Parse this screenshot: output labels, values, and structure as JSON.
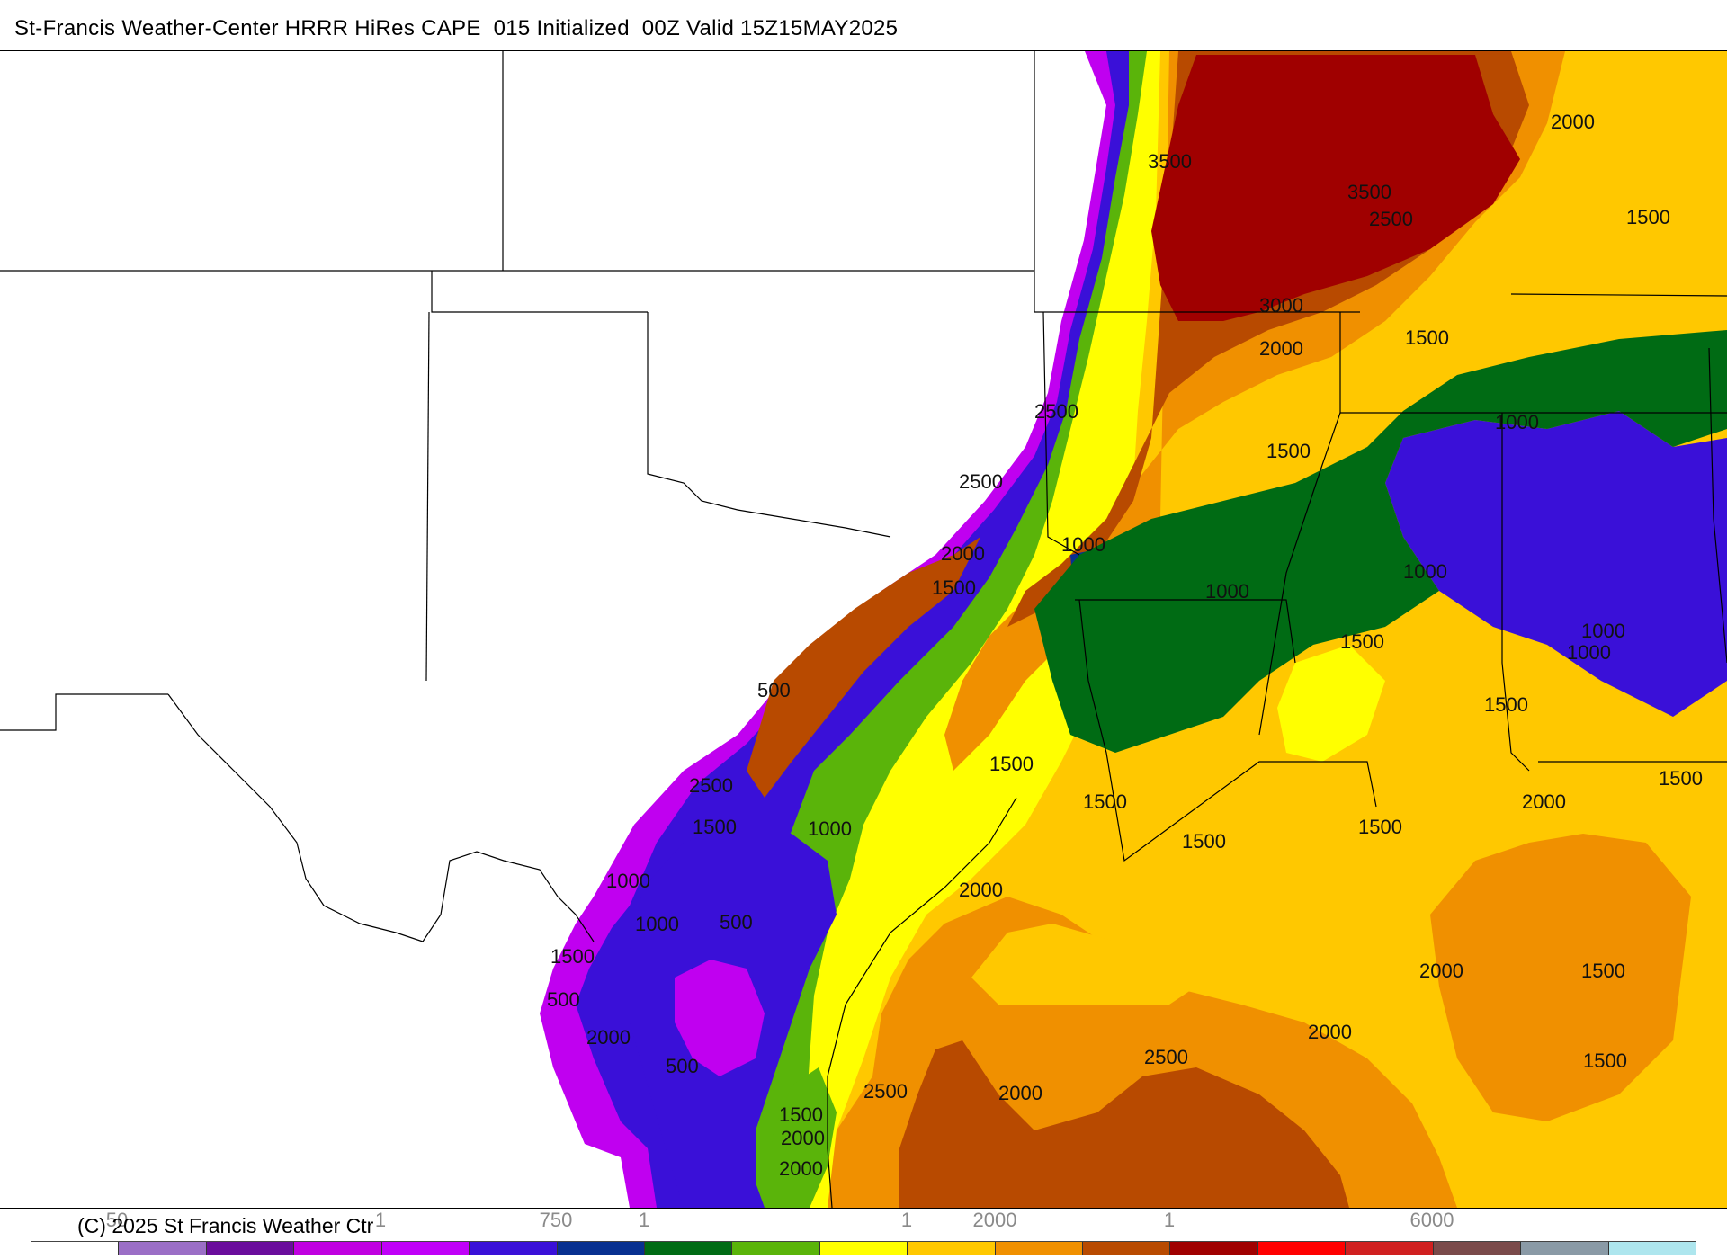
{
  "header": {
    "title": "St-Francis Weather-Center HRRR HiRes CAPE  015 Initialized  00Z Valid 15Z15MAY2025"
  },
  "footer": {
    "copyright": "(C) 2025 St Francis Weather Ctr"
  },
  "colorbar": {
    "colors": [
      "#ffffff",
      "#9b6fc6",
      "#6a0d9c",
      "#c000e0",
      "#c000f8",
      "#3a10d8",
      "#083090",
      "#006b14",
      "#5ab40a",
      "#ffff00",
      "#ffc800",
      "#f09000",
      "#b84a00",
      "#a00000",
      "#ff0000",
      "#d02020",
      "#7a4a4a",
      "#8a9aa6",
      "#aee6ee"
    ],
    "labels": [
      {
        "text": "50"
      },
      {
        "text": "1"
      },
      {
        "text": "750"
      },
      {
        "text": "1"
      },
      {
        "text": "1"
      },
      {
        "text": "2000"
      },
      {
        "text": "1"
      },
      {
        "text": "6000"
      }
    ]
  },
  "map": {
    "contour_labels": [
      "3500",
      "3500",
      "2500",
      "2000",
      "3000",
      "2000",
      "1500",
      "1500",
      "2500",
      "1000",
      "1500",
      "2500",
      "2000",
      "1000",
      "1000",
      "1500",
      "1000",
      "1500",
      "1000",
      "1000",
      "1500",
      "500",
      "1500",
      "1500",
      "1500",
      "2500",
      "1500",
      "2000",
      "1500",
      "1500",
      "1000",
      "1500",
      "1000",
      "2000",
      "1000",
      "500",
      "2000",
      "1500",
      "2000",
      "500",
      "2000",
      "2500",
      "2000",
      "1500",
      "500",
      "2500",
      "2000",
      "1500",
      "2000"
    ]
  }
}
